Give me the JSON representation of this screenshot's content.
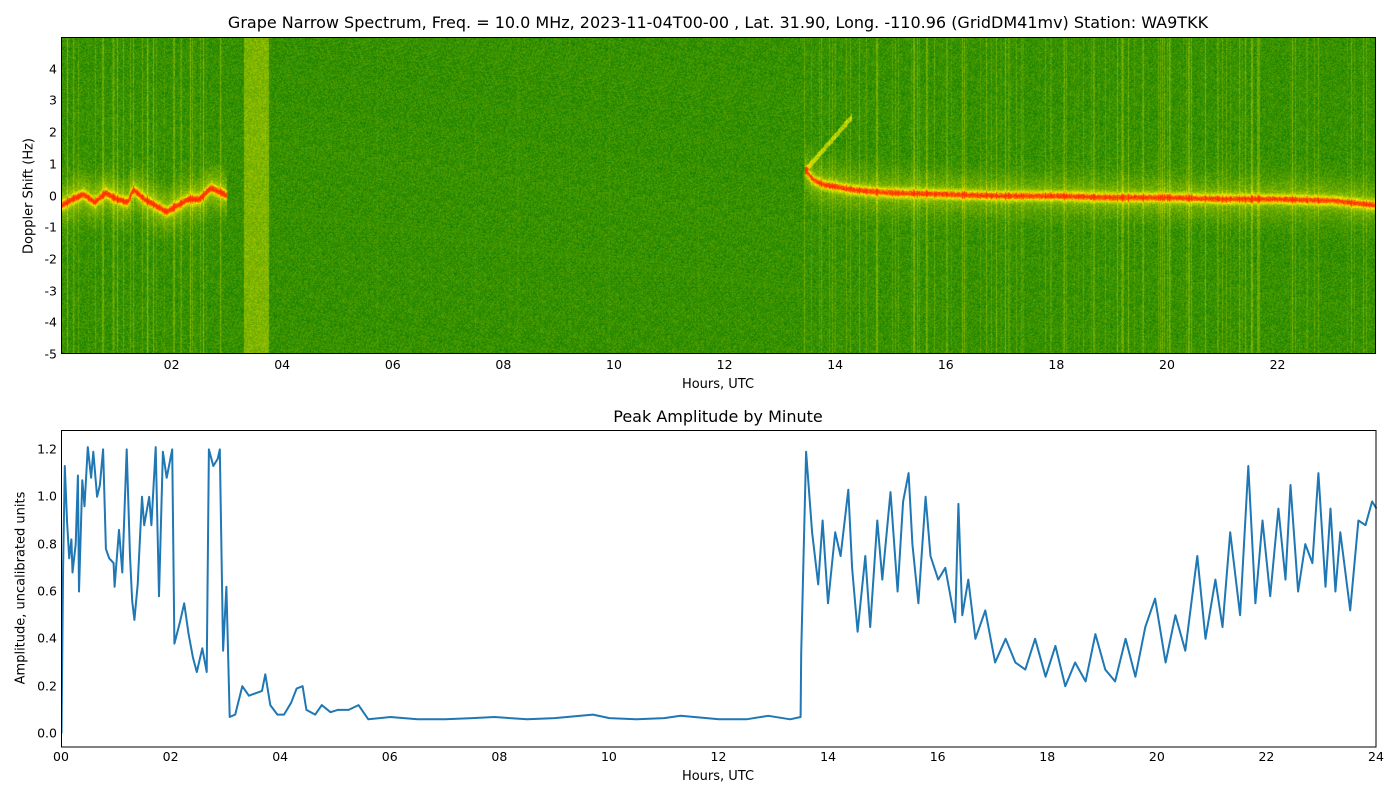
{
  "chart_data": [
    {
      "type": "heatmap",
      "title": "Grape Narrow Spectrum, Freq. = 10.0 MHz, 2023-11-04T00-00 , Lat.  31.90, Long. -110.96 (GridDM41mv) Station: WA9TKK",
      "xlabel": "Hours, UTC",
      "ylabel": "Doppler Shift (Hz)",
      "xlim": [
        0,
        23.78
      ],
      "ylim": [
        -5,
        5
      ],
      "xticks": [
        "02",
        "04",
        "06",
        "08",
        "10",
        "12",
        "14",
        "16",
        "18",
        "20",
        "22"
      ],
      "xtick_values": [
        2,
        4,
        6,
        8,
        10,
        12,
        14,
        16,
        18,
        20,
        22
      ],
      "yticks": [
        "4",
        "3",
        "2",
        "1",
        "0",
        "-1",
        "-2",
        "-3",
        "-4",
        "-5"
      ],
      "ytick_values": [
        4,
        3,
        2,
        1,
        0,
        -1,
        -2,
        -3,
        -4,
        -5
      ],
      "colors": {
        "background": "#158000",
        "mid": "#e8f000",
        "peak": "#ff3000"
      },
      "wideband_interval_hours": [
        3.3,
        3.75
      ],
      "doppler_trace": [
        [
          0.0,
          -0.3
        ],
        [
          0.2,
          -0.1
        ],
        [
          0.4,
          0.05
        ],
        [
          0.6,
          -0.2
        ],
        [
          0.8,
          0.1
        ],
        [
          1.0,
          -0.1
        ],
        [
          1.2,
          -0.2
        ],
        [
          1.3,
          0.2
        ],
        [
          1.5,
          -0.1
        ],
        [
          1.7,
          -0.3
        ],
        [
          1.9,
          -0.5
        ],
        [
          2.1,
          -0.3
        ],
        [
          2.3,
          -0.1
        ],
        [
          2.5,
          -0.1
        ],
        [
          2.7,
          0.25
        ],
        [
          2.9,
          0.1
        ],
        [
          3.0,
          0.0
        ],
        [
          13.45,
          0.8
        ],
        [
          13.6,
          0.5
        ],
        [
          13.8,
          0.35
        ],
        [
          14.0,
          0.3
        ],
        [
          14.3,
          0.2
        ],
        [
          14.6,
          0.15
        ],
        [
          15.0,
          0.1
        ],
        [
          16.0,
          0.05
        ],
        [
          17.0,
          0.0
        ],
        [
          18.0,
          0.0
        ],
        [
          19.0,
          -0.05
        ],
        [
          20.0,
          -0.05
        ],
        [
          21.0,
          -0.1
        ],
        [
          22.0,
          -0.1
        ],
        [
          23.0,
          -0.15
        ],
        [
          23.78,
          -0.3
        ]
      ]
    },
    {
      "type": "line",
      "title": "Peak Amplitude by Minute",
      "xlabel": "Hours, UTC",
      "ylabel": "Amplitude, uncalibrated units",
      "xlim": [
        0,
        24
      ],
      "ylim": [
        -0.059,
        1.28
      ],
      "xticks": [
        "00",
        "02",
        "04",
        "06",
        "08",
        "10",
        "12",
        "14",
        "16",
        "18",
        "20",
        "22",
        "24"
      ],
      "xtick_values": [
        0,
        2,
        4,
        6,
        8,
        10,
        12,
        14,
        16,
        18,
        20,
        22,
        24
      ],
      "yticks": [
        "0.0",
        "0.2",
        "0.4",
        "0.6",
        "0.8",
        "1.0",
        "1.2"
      ],
      "ytick_values": [
        0,
        0.2,
        0.4,
        0.6,
        0.8,
        1.0,
        1.2
      ],
      "color": "#1f77b4",
      "series": [
        {
          "name": "Peak Amplitude",
          "points": [
            [
              0.0,
              0.0
            ],
            [
              0.03,
              0.7
            ],
            [
              0.06,
              1.13
            ],
            [
              0.1,
              0.9
            ],
            [
              0.14,
              0.74
            ],
            [
              0.18,
              0.82
            ],
            [
              0.2,
              0.68
            ],
            [
              0.26,
              0.8
            ],
            [
              0.3,
              1.09
            ],
            [
              0.32,
              0.6
            ],
            [
              0.38,
              1.07
            ],
            [
              0.42,
              0.96
            ],
            [
              0.48,
              1.21
            ],
            [
              0.54,
              1.08
            ],
            [
              0.58,
              1.19
            ],
            [
              0.65,
              1.0
            ],
            [
              0.7,
              1.05
            ],
            [
              0.76,
              1.2
            ],
            [
              0.81,
              0.78
            ],
            [
              0.87,
              0.74
            ],
            [
              0.95,
              0.72
            ],
            [
              0.97,
              0.62
            ],
            [
              1.05,
              0.86
            ],
            [
              1.11,
              0.68
            ],
            [
              1.19,
              1.2
            ],
            [
              1.25,
              0.75
            ],
            [
              1.29,
              0.56
            ],
            [
              1.33,
              0.48
            ],
            [
              1.39,
              0.63
            ],
            [
              1.47,
              1.0
            ],
            [
              1.51,
              0.88
            ],
            [
              1.6,
              1.0
            ],
            [
              1.64,
              0.88
            ],
            [
              1.72,
              1.21
            ],
            [
              1.78,
              0.58
            ],
            [
              1.85,
              1.19
            ],
            [
              1.92,
              1.08
            ],
            [
              2.02,
              1.2
            ],
            [
              2.06,
              0.38
            ],
            [
              2.16,
              0.47
            ],
            [
              2.24,
              0.55
            ],
            [
              2.32,
              0.42
            ],
            [
              2.4,
              0.32
            ],
            [
              2.47,
              0.26
            ],
            [
              2.57,
              0.36
            ],
            [
              2.65,
              0.26
            ],
            [
              2.69,
              1.2
            ],
            [
              2.77,
              1.13
            ],
            [
              2.85,
              1.16
            ],
            [
              2.89,
              1.2
            ],
            [
              2.95,
              0.35
            ],
            [
              3.01,
              0.62
            ],
            [
              3.07,
              0.07
            ],
            [
              3.17,
              0.08
            ],
            [
              3.3,
              0.2
            ],
            [
              3.42,
              0.16
            ],
            [
              3.54,
              0.17
            ],
            [
              3.66,
              0.18
            ],
            [
              3.72,
              0.25
            ],
            [
              3.81,
              0.12
            ],
            [
              3.94,
              0.08
            ],
            [
              4.06,
              0.08
            ],
            [
              4.19,
              0.13
            ],
            [
              4.29,
              0.19
            ],
            [
              4.4,
              0.2
            ],
            [
              4.47,
              0.1
            ],
            [
              4.63,
              0.08
            ],
            [
              4.75,
              0.12
            ],
            [
              4.91,
              0.09
            ],
            [
              5.04,
              0.1
            ],
            [
              5.24,
              0.1
            ],
            [
              5.42,
              0.12
            ],
            [
              5.6,
              0.06
            ],
            [
              6.0,
              0.07
            ],
            [
              6.5,
              0.06
            ],
            [
              7.0,
              0.06
            ],
            [
              7.5,
              0.065
            ],
            [
              7.9,
              0.07
            ],
            [
              8.5,
              0.06
            ],
            [
              9.0,
              0.065
            ],
            [
              9.7,
              0.08
            ],
            [
              10.0,
              0.065
            ],
            [
              10.5,
              0.06
            ],
            [
              11.0,
              0.065
            ],
            [
              11.3,
              0.075
            ],
            [
              12.0,
              0.06
            ],
            [
              12.5,
              0.06
            ],
            [
              12.9,
              0.075
            ],
            [
              13.3,
              0.06
            ],
            [
              13.49,
              0.07
            ],
            [
              13.5,
              0.34
            ],
            [
              13.59,
              1.19
            ],
            [
              13.7,
              0.85
            ],
            [
              13.81,
              0.63
            ],
            [
              13.89,
              0.9
            ],
            [
              13.99,
              0.55
            ],
            [
              14.12,
              0.85
            ],
            [
              14.22,
              0.75
            ],
            [
              14.36,
              1.03
            ],
            [
              14.43,
              0.7
            ],
            [
              14.53,
              0.43
            ],
            [
              14.67,
              0.75
            ],
            [
              14.76,
              0.45
            ],
            [
              14.89,
              0.9
            ],
            [
              14.98,
              0.65
            ],
            [
              15.13,
              1.02
            ],
            [
              15.26,
              0.6
            ],
            [
              15.36,
              0.98
            ],
            [
              15.46,
              1.1
            ],
            [
              15.53,
              0.8
            ],
            [
              15.64,
              0.55
            ],
            [
              15.77,
              1.0
            ],
            [
              15.86,
              0.75
            ],
            [
              16.0,
              0.65
            ],
            [
              16.13,
              0.7
            ],
            [
              16.31,
              0.47
            ],
            [
              16.37,
              0.97
            ],
            [
              16.44,
              0.5
            ],
            [
              16.55,
              0.65
            ],
            [
              16.68,
              0.4
            ],
            [
              16.86,
              0.52
            ],
            [
              17.04,
              0.3
            ],
            [
              17.23,
              0.4
            ],
            [
              17.41,
              0.3
            ],
            [
              17.59,
              0.27
            ],
            [
              17.77,
              0.4
            ],
            [
              17.96,
              0.24
            ],
            [
              18.14,
              0.37
            ],
            [
              18.32,
              0.2
            ],
            [
              18.5,
              0.3
            ],
            [
              18.69,
              0.22
            ],
            [
              18.87,
              0.42
            ],
            [
              19.05,
              0.27
            ],
            [
              19.23,
              0.22
            ],
            [
              19.42,
              0.4
            ],
            [
              19.6,
              0.24
            ],
            [
              19.78,
              0.45
            ],
            [
              19.96,
              0.57
            ],
            [
              20.15,
              0.3
            ],
            [
              20.33,
              0.5
            ],
            [
              20.51,
              0.35
            ],
            [
              20.73,
              0.75
            ],
            [
              20.88,
              0.4
            ],
            [
              21.06,
              0.65
            ],
            [
              21.19,
              0.45
            ],
            [
              21.33,
              0.85
            ],
            [
              21.51,
              0.5
            ],
            [
              21.66,
              1.13
            ],
            [
              21.79,
              0.55
            ],
            [
              21.92,
              0.9
            ],
            [
              22.06,
              0.58
            ],
            [
              22.21,
              0.95
            ],
            [
              22.34,
              0.65
            ],
            [
              22.43,
              1.05
            ],
            [
              22.57,
              0.6
            ],
            [
              22.7,
              0.8
            ],
            [
              22.83,
              0.72
            ],
            [
              22.94,
              1.1
            ],
            [
              23.07,
              0.62
            ],
            [
              23.16,
              0.95
            ],
            [
              23.25,
              0.6
            ],
            [
              23.34,
              0.85
            ],
            [
              23.52,
              0.52
            ],
            [
              23.67,
              0.9
            ],
            [
              23.8,
              0.88
            ],
            [
              23.92,
              0.98
            ],
            [
              24.0,
              0.95
            ]
          ]
        }
      ]
    }
  ]
}
